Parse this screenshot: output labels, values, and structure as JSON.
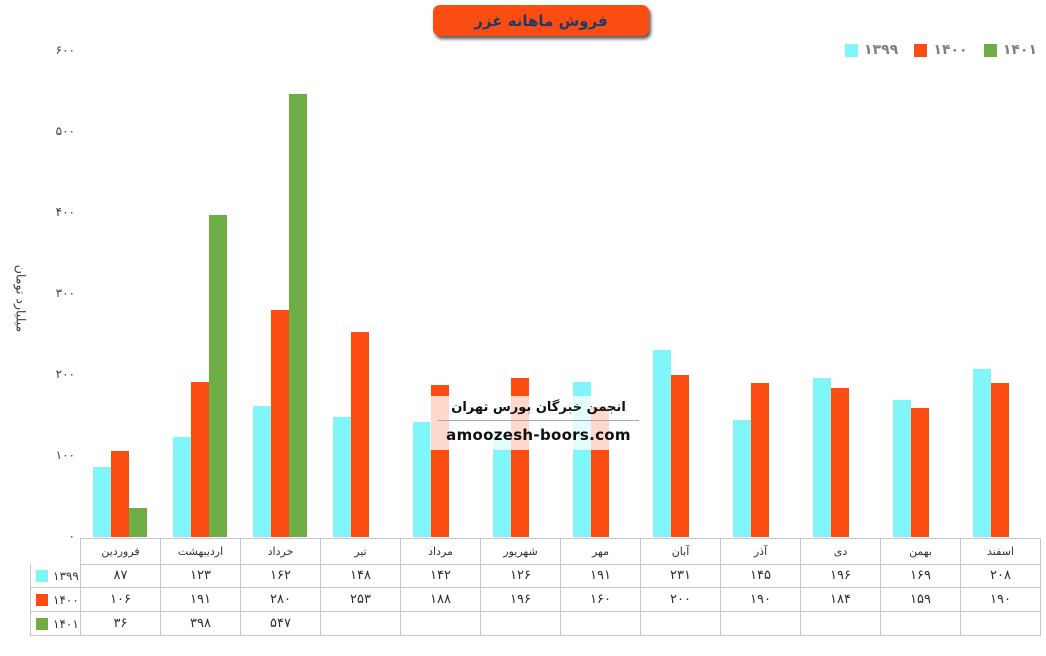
{
  "header": {
    "title_bg": "#FB4D12",
    "title_text_color": "#1F3864"
  },
  "watermark": {
    "line1": "انجمن خبرگان بورس تهران",
    "line2": "amoozesh-boors.com"
  },
  "chart_data": {
    "type": "bar",
    "title": "فروش ماهانه غزر",
    "xlabel": "",
    "ylabel": "میلیارد تومان",
    "ylim": [
      0,
      600
    ],
    "ytick_step": 100,
    "grid": false,
    "legend_position": "top-right",
    "digit_style": "persian",
    "categories": [
      "فروردین",
      "اردیبهشت",
      "خرداد",
      "تیر",
      "مرداد",
      "شهریور",
      "مهر",
      "آبان",
      "آذر",
      "دی",
      "بهمن",
      "اسفند"
    ],
    "series": [
      {
        "name": "۱۳۹۹",
        "year": 1399,
        "color": "#7FF7FA",
        "values": [
          87,
          123,
          162,
          148,
          142,
          126,
          191,
          231,
          145,
          196,
          169,
          208
        ]
      },
      {
        "name": "۱۴۰۰",
        "year": 1400,
        "color": "#FB4D12",
        "values": [
          106,
          191,
          280,
          253,
          188,
          196,
          160,
          200,
          190,
          184,
          159,
          190
        ]
      },
      {
        "name": "۱۴۰۱",
        "year": 1401,
        "color": "#6FAD47",
        "values": [
          36,
          398,
          547,
          null,
          null,
          null,
          null,
          null,
          null,
          null,
          null,
          null
        ]
      }
    ],
    "data_table_shown": true
  }
}
